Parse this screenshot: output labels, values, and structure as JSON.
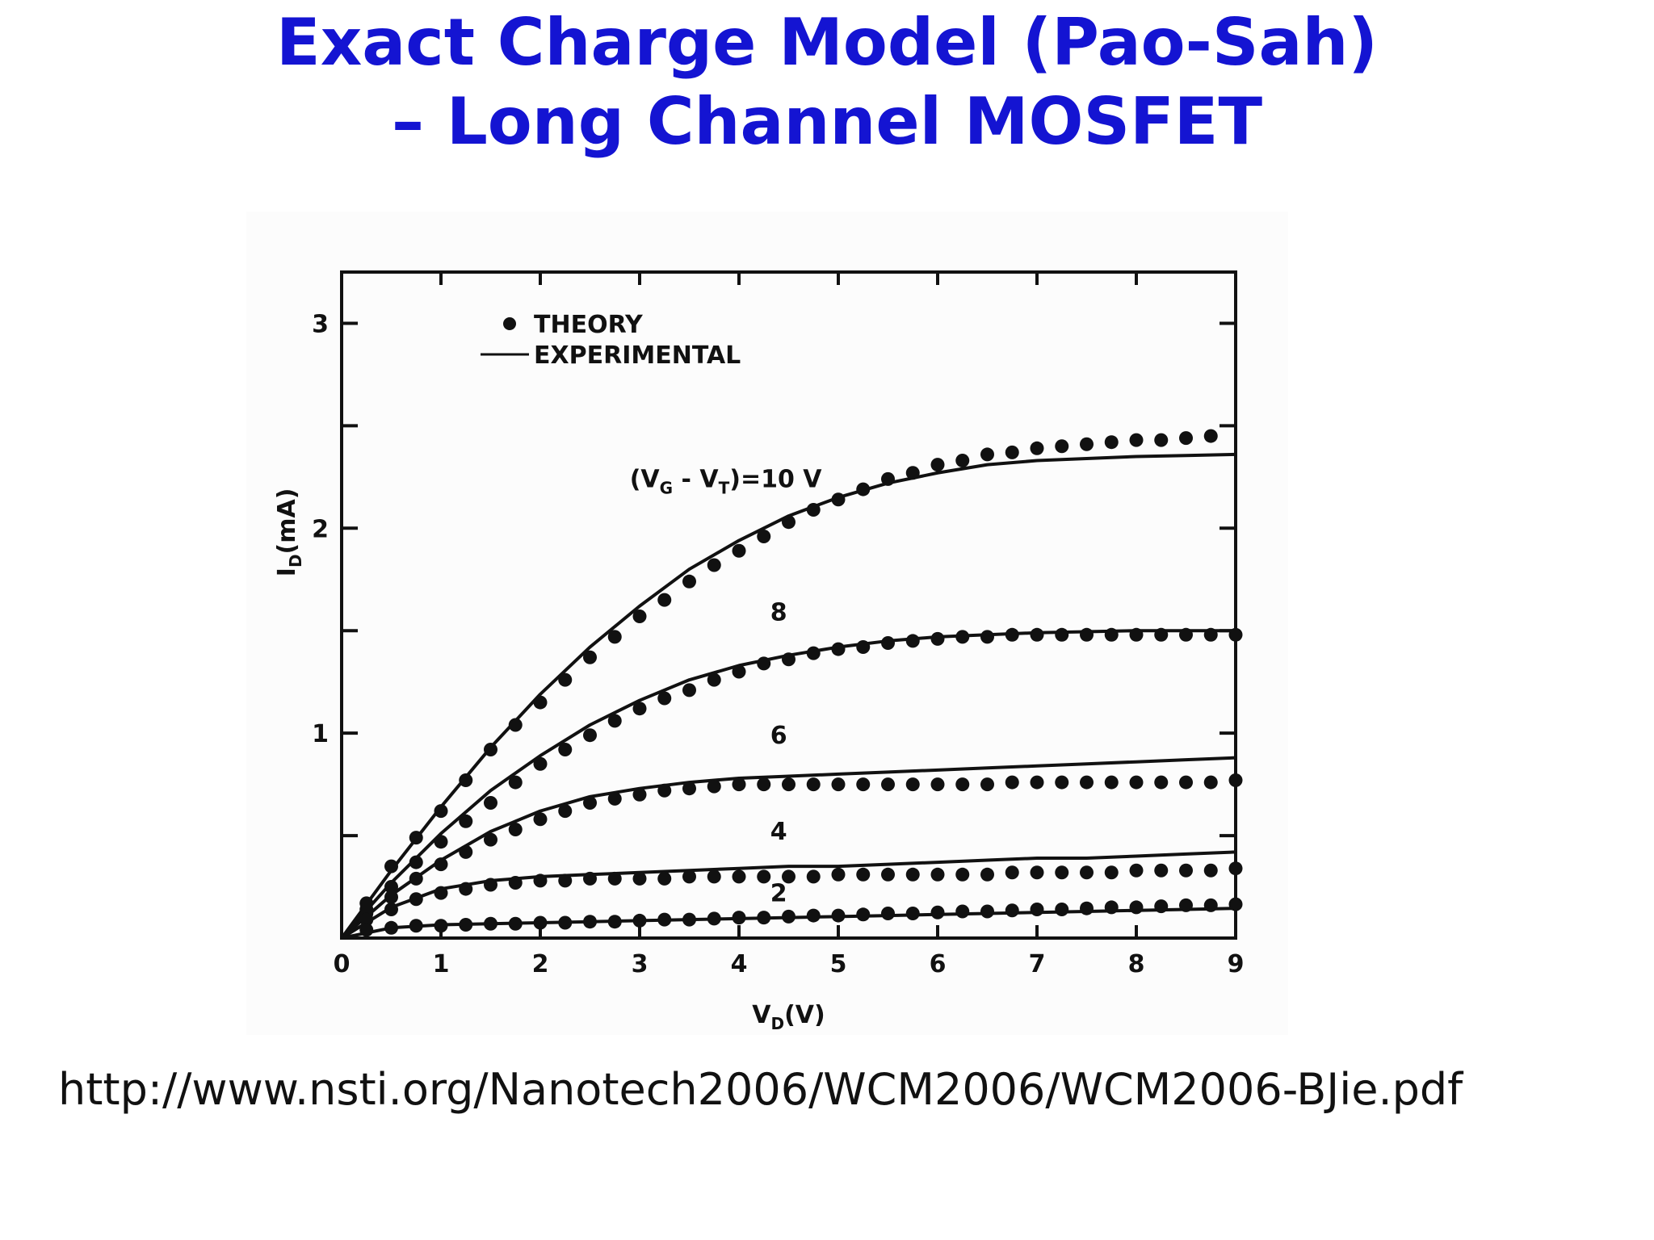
{
  "slide": {
    "title_line1": "Exact Charge Model (Pao-Sah)",
    "title_line2": "– Long Channel MOSFET",
    "source_url": "http://www.nsti.org/Nanotech2006/WCM2006/WCM2006-BJie.pdf",
    "title_color": "#1414d2"
  },
  "chart_data": {
    "type": "line",
    "xlabel": "V_D(V)",
    "ylabel": "I_D(mA)",
    "xlim": [
      0,
      9
    ],
    "ylim": [
      0,
      3.25
    ],
    "x_ticks": [
      0,
      1,
      2,
      3,
      4,
      5,
      6,
      7,
      8,
      9
    ],
    "y_ticks": [
      1,
      2,
      3
    ],
    "grid": false,
    "legend": {
      "placement": "top-left",
      "entries": [
        {
          "marker": "dot",
          "label": "THEORY"
        },
        {
          "marker": "line",
          "label": "EXPERIMENTAL"
        }
      ]
    },
    "curve_labels": [
      {
        "series": "(VG-VT)=10 V",
        "text_main": "(V",
        "sub1": "G",
        "mid": " - V",
        "sub2": "T",
        "tail": ")=10 V",
        "x": 2.9,
        "y": 2.2
      },
      {
        "series": "8",
        "text": "8",
        "x": 4.4,
        "y": 1.55
      },
      {
        "series": "6",
        "text": "6",
        "x": 4.4,
        "y": 0.95
      },
      {
        "series": "4",
        "text": "4",
        "x": 4.4,
        "y": 0.48
      },
      {
        "series": "2",
        "text": "2",
        "x": 4.4,
        "y": 0.18
      }
    ],
    "series": [
      {
        "label": "10 V",
        "experimental": {
          "x": [
            0,
            0.5,
            1,
            1.5,
            2,
            2.5,
            3,
            3.5,
            4,
            4.5,
            5,
            5.5,
            6,
            6.5,
            7,
            7.5,
            8,
            8.5,
            9
          ],
          "y": [
            0,
            0.33,
            0.64,
            0.93,
            1.19,
            1.42,
            1.62,
            1.8,
            1.94,
            2.06,
            2.15,
            2.22,
            2.27,
            2.31,
            2.33,
            2.34,
            2.35,
            2.355,
            2.36
          ]
        },
        "theory": {
          "x": [
            0.25,
            0.5,
            0.75,
            1,
            1.25,
            1.5,
            1.75,
            2,
            2.25,
            2.5,
            2.75,
            3,
            3.25,
            3.5,
            3.75,
            4,
            4.25,
            4.5,
            4.75,
            5,
            5.25,
            5.5,
            5.75,
            6,
            6.25,
            6.5,
            6.75,
            7,
            7.25,
            7.5,
            7.75,
            8,
            8.25,
            8.5,
            8.75
          ],
          "y": [
            0.17,
            0.35,
            0.49,
            0.62,
            0.77,
            0.92,
            1.04,
            1.15,
            1.26,
            1.37,
            1.47,
            1.57,
            1.65,
            1.74,
            1.82,
            1.89,
            1.96,
            2.03,
            2.09,
            2.14,
            2.19,
            2.24,
            2.27,
            2.31,
            2.33,
            2.36,
            2.37,
            2.39,
            2.4,
            2.41,
            2.42,
            2.43,
            2.43,
            2.44,
            2.45
          ]
        }
      },
      {
        "label": "8",
        "experimental": {
          "x": [
            0,
            0.5,
            1,
            1.5,
            2,
            2.5,
            3,
            3.5,
            4,
            4.5,
            5,
            5.5,
            6,
            6.5,
            7,
            7.5,
            8,
            8.5,
            9
          ],
          "y": [
            0,
            0.27,
            0.51,
            0.72,
            0.89,
            1.04,
            1.16,
            1.26,
            1.33,
            1.38,
            1.42,
            1.45,
            1.47,
            1.48,
            1.49,
            1.495,
            1.5,
            1.5,
            1.5
          ]
        },
        "theory": {
          "x": [
            0.25,
            0.5,
            0.75,
            1,
            1.25,
            1.5,
            1.75,
            2,
            2.25,
            2.5,
            2.75,
            3,
            3.25,
            3.5,
            3.75,
            4,
            4.25,
            4.5,
            4.75,
            5,
            5.25,
            5.5,
            5.75,
            6,
            6.25,
            6.5,
            6.75,
            7,
            7.25,
            7.5,
            7.75,
            8,
            8.25,
            8.5,
            8.75,
            9
          ],
          "y": [
            0.14,
            0.25,
            0.37,
            0.47,
            0.57,
            0.66,
            0.76,
            0.85,
            0.92,
            0.99,
            1.06,
            1.12,
            1.17,
            1.21,
            1.26,
            1.3,
            1.34,
            1.36,
            1.39,
            1.41,
            1.42,
            1.44,
            1.45,
            1.46,
            1.47,
            1.47,
            1.48,
            1.48,
            1.48,
            1.48,
            1.48,
            1.48,
            1.48,
            1.48,
            1.48,
            1.48
          ]
        }
      },
      {
        "label": "6",
        "experimental": {
          "x": [
            0,
            0.5,
            1,
            1.5,
            2,
            2.5,
            3,
            3.5,
            4,
            4.5,
            5,
            5.5,
            6,
            6.5,
            7,
            7.5,
            8,
            8.5,
            9
          ],
          "y": [
            0,
            0.21,
            0.38,
            0.52,
            0.62,
            0.69,
            0.73,
            0.76,
            0.78,
            0.79,
            0.8,
            0.81,
            0.82,
            0.83,
            0.84,
            0.85,
            0.86,
            0.87,
            0.88
          ]
        },
        "theory": {
          "x": [
            0.25,
            0.5,
            0.75,
            1,
            1.25,
            1.5,
            1.75,
            2,
            2.25,
            2.5,
            2.75,
            3,
            3.25,
            3.5,
            3.75,
            4,
            4.25,
            4.5,
            4.75,
            5,
            5.25,
            5.5,
            5.75,
            6,
            6.25,
            6.5,
            6.75,
            7,
            7.25,
            7.5,
            7.75,
            8,
            8.25,
            8.5,
            8.75,
            9
          ],
          "y": [
            0.12,
            0.2,
            0.29,
            0.36,
            0.42,
            0.48,
            0.53,
            0.58,
            0.62,
            0.66,
            0.68,
            0.7,
            0.72,
            0.73,
            0.74,
            0.75,
            0.75,
            0.75,
            0.75,
            0.75,
            0.75,
            0.75,
            0.75,
            0.75,
            0.75,
            0.75,
            0.76,
            0.76,
            0.76,
            0.76,
            0.76,
            0.76,
            0.76,
            0.76,
            0.76,
            0.77
          ]
        }
      },
      {
        "label": "4",
        "experimental": {
          "x": [
            0,
            0.5,
            1,
            1.5,
            2,
            2.5,
            3,
            3.5,
            4,
            4.5,
            5,
            5.5,
            6,
            6.5,
            7,
            7.5,
            8,
            8.5,
            9
          ],
          "y": [
            0,
            0.15,
            0.24,
            0.28,
            0.3,
            0.31,
            0.32,
            0.33,
            0.34,
            0.35,
            0.35,
            0.36,
            0.37,
            0.38,
            0.39,
            0.39,
            0.4,
            0.41,
            0.42
          ]
        },
        "theory": {
          "x": [
            0.25,
            0.5,
            0.75,
            1,
            1.25,
            1.5,
            1.75,
            2,
            2.25,
            2.5,
            2.75,
            3,
            3.25,
            3.5,
            3.75,
            4,
            4.25,
            4.5,
            4.75,
            5,
            5.25,
            5.5,
            5.75,
            6,
            6.25,
            6.5,
            6.75,
            7,
            7.25,
            7.5,
            7.75,
            8,
            8.25,
            8.5,
            8.75,
            9
          ],
          "y": [
            0.09,
            0.14,
            0.19,
            0.22,
            0.24,
            0.26,
            0.27,
            0.28,
            0.28,
            0.29,
            0.29,
            0.29,
            0.29,
            0.3,
            0.3,
            0.3,
            0.3,
            0.3,
            0.3,
            0.31,
            0.31,
            0.31,
            0.31,
            0.31,
            0.31,
            0.31,
            0.32,
            0.32,
            0.32,
            0.32,
            0.32,
            0.33,
            0.33,
            0.33,
            0.33,
            0.34
          ]
        }
      },
      {
        "label": "2",
        "experimental": {
          "x": [
            0,
            0.5,
            1,
            1.5,
            2,
            2.5,
            3,
            3.5,
            4,
            4.5,
            5,
            5.5,
            6,
            6.5,
            7,
            7.5,
            8,
            8.5,
            9
          ],
          "y": [
            0,
            0.05,
            0.065,
            0.07,
            0.075,
            0.08,
            0.085,
            0.09,
            0.095,
            0.1,
            0.105,
            0.11,
            0.115,
            0.12,
            0.125,
            0.13,
            0.135,
            0.14,
            0.145
          ]
        },
        "theory": {
          "x": [
            0.25,
            0.5,
            0.75,
            1,
            1.25,
            1.5,
            1.75,
            2,
            2.25,
            2.5,
            2.75,
            3,
            3.25,
            3.5,
            3.75,
            4,
            4.25,
            4.5,
            4.75,
            5,
            5.25,
            5.5,
            5.75,
            6,
            6.25,
            6.5,
            6.75,
            7,
            7.25,
            7.5,
            7.75,
            8,
            8.25,
            8.5,
            8.75,
            9
          ],
          "y": [
            0.04,
            0.05,
            0.06,
            0.06,
            0.065,
            0.07,
            0.07,
            0.075,
            0.075,
            0.08,
            0.08,
            0.085,
            0.09,
            0.09,
            0.095,
            0.1,
            0.1,
            0.105,
            0.11,
            0.11,
            0.115,
            0.12,
            0.12,
            0.125,
            0.13,
            0.13,
            0.135,
            0.14,
            0.14,
            0.145,
            0.15,
            0.15,
            0.155,
            0.16,
            0.16,
            0.165
          ]
        }
      }
    ]
  }
}
